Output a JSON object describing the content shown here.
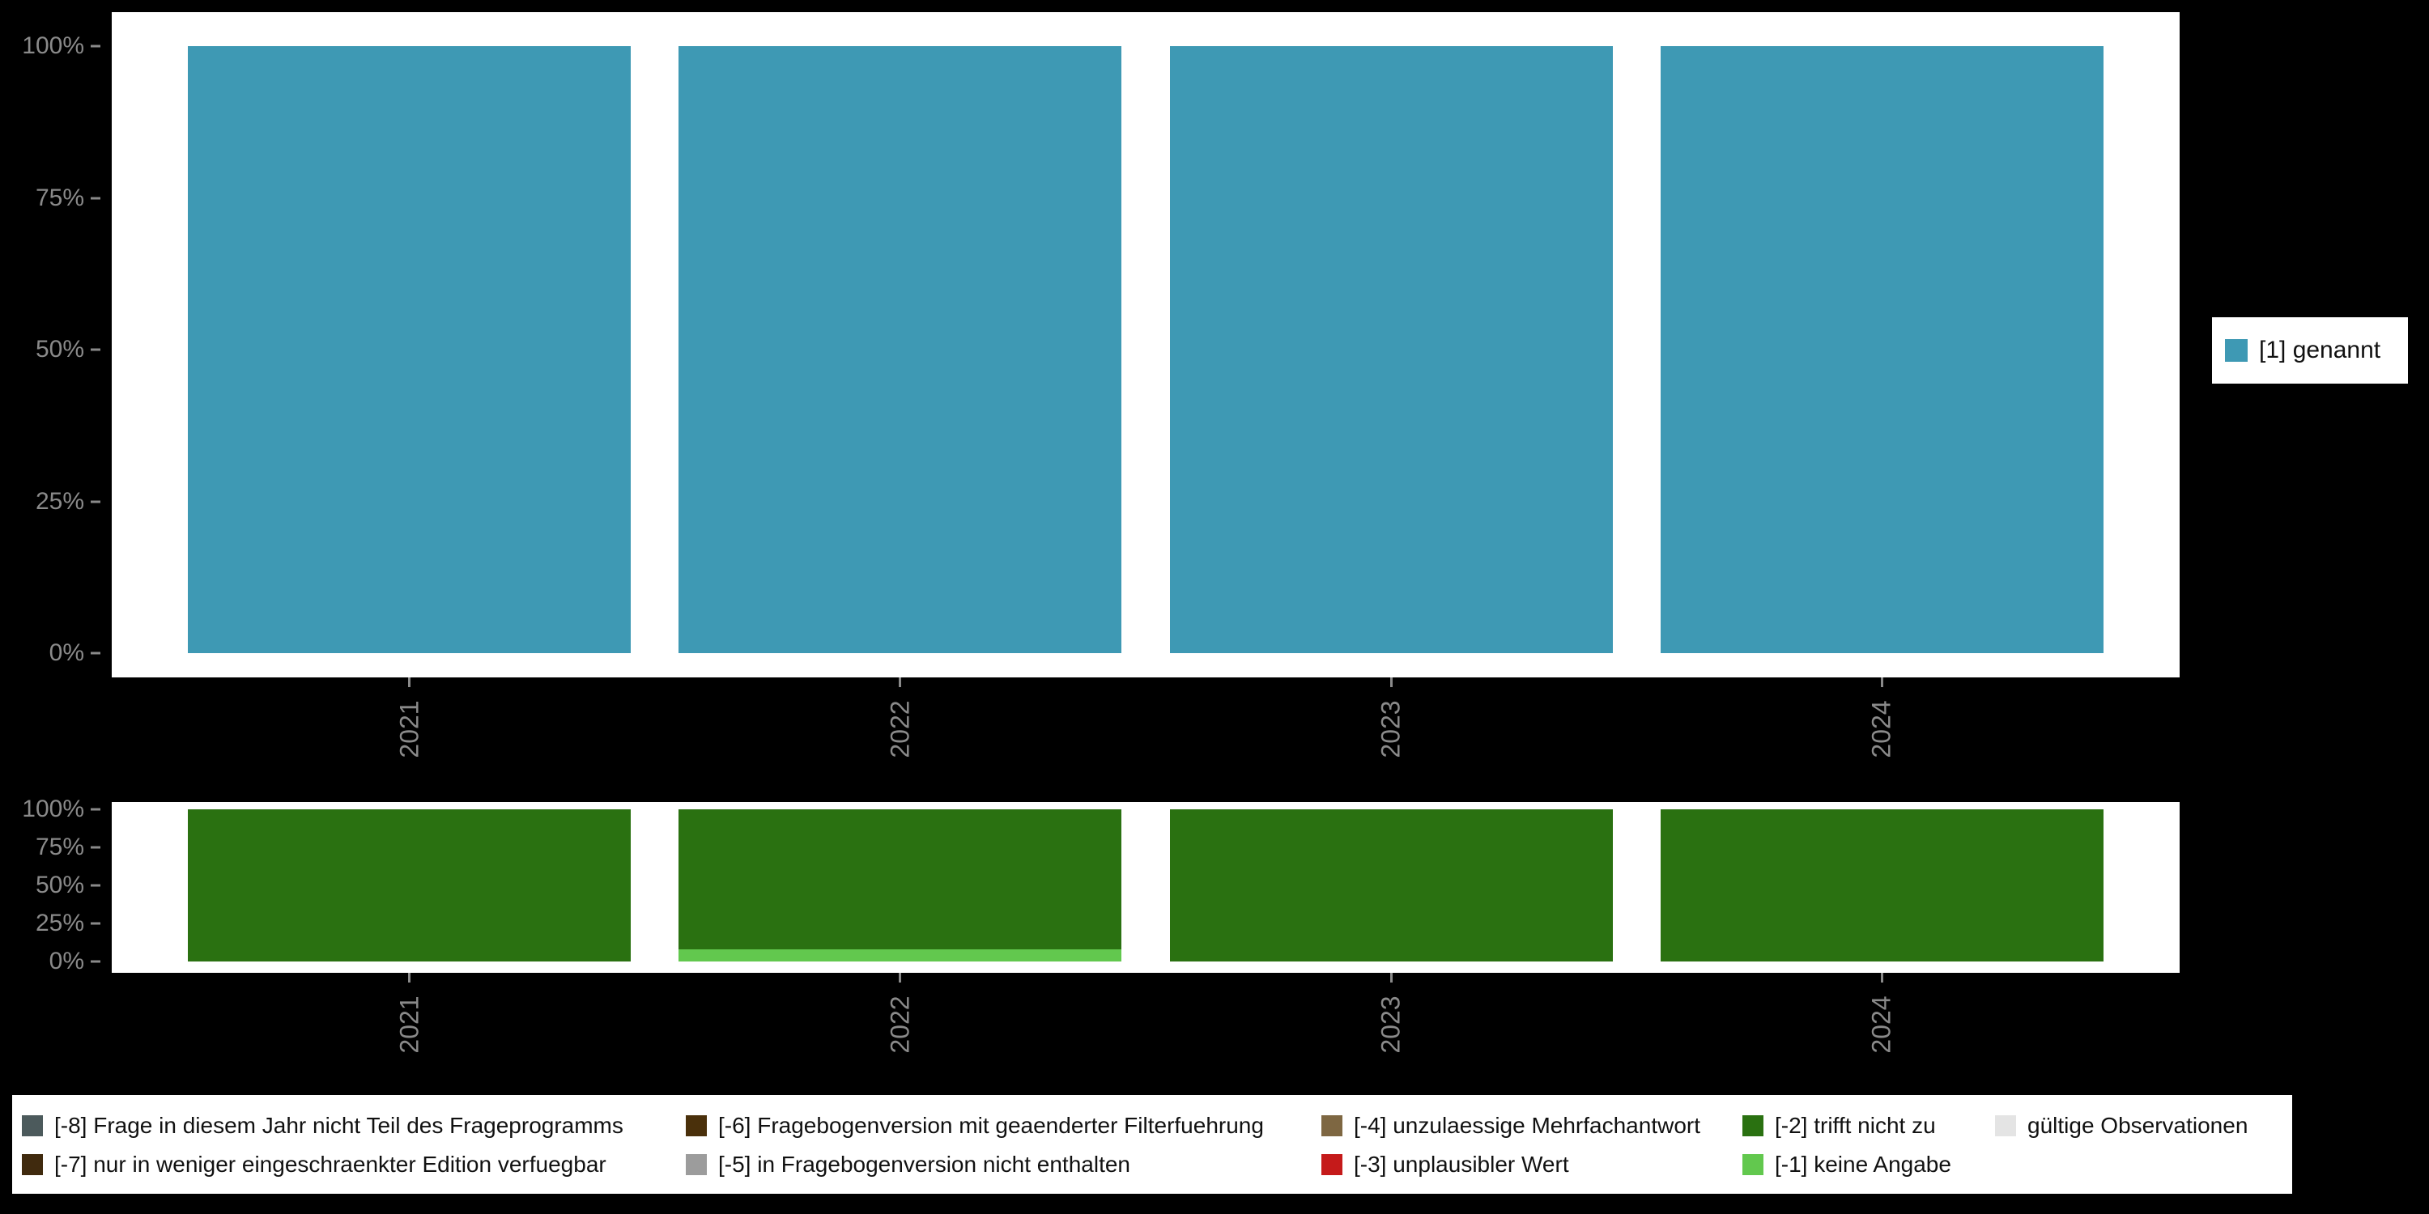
{
  "colors": {
    "background": "#000000",
    "panel": "#ffffff",
    "axis_text": "#8a8a8a",
    "genannt_teal": "#3e99b4",
    "trifft_nicht_zu_green": "#2a7111",
    "keine_angabe_lightgreen": "#62c84e",
    "unplausibler_wert_red": "#c51a1a"
  },
  "chart_data": [
    {
      "id": "top",
      "type": "bar",
      "stacked": true,
      "categories": [
        "2021",
        "2022",
        "2023",
        "2024"
      ],
      "series": [
        {
          "name": "[1] genannt",
          "color": "#3e99b4",
          "values": [
            100,
            100,
            100,
            100
          ]
        }
      ],
      "yticks": [
        "100%",
        "75%",
        "50%",
        "25%",
        "0%"
      ],
      "ylim": [
        0,
        100
      ],
      "legend_position": "right"
    },
    {
      "id": "bottom",
      "type": "bar",
      "stacked": true,
      "categories": [
        "2021",
        "2022",
        "2023",
        "2024"
      ],
      "series": [
        {
          "name": "[-1] keine Angabe",
          "color": "#62c84e",
          "values": [
            0,
            8,
            0,
            0
          ]
        },
        {
          "name": "[-2] trifft nicht zu",
          "color": "#2a7111",
          "values": [
            100,
            92,
            100,
            100
          ]
        }
      ],
      "yticks": [
        "100%",
        "75%",
        "50%",
        "25%",
        "0%"
      ],
      "ylim": [
        0,
        100
      ],
      "legend_position": "bottom"
    }
  ],
  "right_legend": {
    "items": [
      {
        "label": "[1] genannt",
        "color": "#3e99b4"
      }
    ]
  },
  "bottom_legend": {
    "columns": [
      {
        "items": [
          {
            "label": "[-8] Frage in diesem Jahr nicht Teil des Frageprogramms",
            "color": "#4c5a5c"
          },
          {
            "label": "[-7] nur in weniger eingeschraenkter Edition verfuegbar",
            "color": "#402a0e"
          }
        ]
      },
      {
        "items": [
          {
            "label": "[-6] Fragebogenversion mit geaenderter Filterfuehrung",
            "color": "#4a300b"
          },
          {
            "label": "[-5] in Fragebogenversion nicht enthalten",
            "color": "#9c9c9c"
          }
        ]
      },
      {
        "items": [
          {
            "label": "[-4] unzulaessige Mehrfachantwort",
            "color": "#7e6742"
          },
          {
            "label": "[-3] unplausibler Wert",
            "color": "#c51a1a"
          }
        ]
      },
      {
        "items": [
          {
            "label": "[-2] trifft nicht zu",
            "color": "#2a7111"
          },
          {
            "label": "[-1] keine Angabe",
            "color": "#62c84e"
          }
        ]
      },
      {
        "items": [
          {
            "label": "gültige Observationen",
            "color": "#e4e4e4"
          }
        ]
      }
    ]
  }
}
